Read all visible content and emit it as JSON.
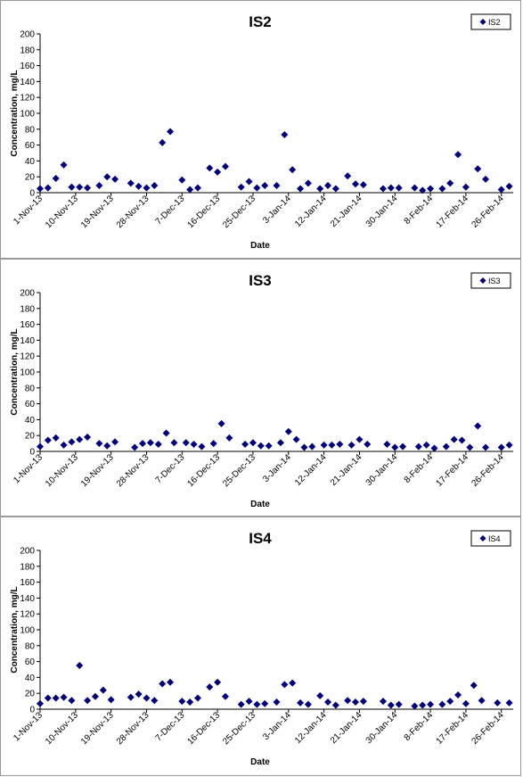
{
  "chart_data": [
    {
      "type": "scatter",
      "title": "IS2",
      "xlabel": "Date",
      "ylabel": "Concentration, mg/L",
      "ylim": [
        0,
        200
      ],
      "yticks": [
        0,
        20,
        40,
        60,
        80,
        100,
        120,
        140,
        160,
        180,
        200
      ],
      "xlim": [
        "2013-11-01",
        "2014-03-01"
      ],
      "xtick_labels": [
        "1-Nov-13",
        "10-Nov-13",
        "19-Nov-13",
        "28-Nov-13",
        "7-Dec-13",
        "16-Dec-13",
        "25-Dec-13",
        "3-Jan-14",
        "12-Jan-14",
        "21-Jan-14",
        "30-Jan-14",
        "8-Feb-14",
        "17-Feb-14",
        "26-Feb-14"
      ],
      "xtick_dates": [
        "2013-11-01",
        "2013-11-10",
        "2013-11-19",
        "2013-11-28",
        "2013-12-07",
        "2013-12-16",
        "2013-12-25",
        "2014-01-03",
        "2014-01-12",
        "2014-01-21",
        "2014-01-30",
        "2014-02-08",
        "2014-02-17",
        "2014-02-26"
      ],
      "legend_position": "top-right",
      "grid": false,
      "marker_color": "#00007f",
      "series": [
        {
          "name": "IS2",
          "points": [
            [
              "2013-11-01",
              5
            ],
            [
              "2013-11-03",
              6
            ],
            [
              "2013-11-05",
              18
            ],
            [
              "2013-11-07",
              35
            ],
            [
              "2013-11-09",
              7
            ],
            [
              "2013-11-11",
              7
            ],
            [
              "2013-11-13",
              6
            ],
            [
              "2013-11-16",
              9
            ],
            [
              "2013-11-18",
              20
            ],
            [
              "2013-11-20",
              17
            ],
            [
              "2013-11-24",
              12
            ],
            [
              "2013-11-26",
              8
            ],
            [
              "2013-11-28",
              6
            ],
            [
              "2013-11-30",
              9
            ],
            [
              "2013-12-02",
              63
            ],
            [
              "2013-12-04",
              77
            ],
            [
              "2013-12-07",
              16
            ],
            [
              "2013-12-09",
              4
            ],
            [
              "2013-12-11",
              6
            ],
            [
              "2013-12-14",
              31
            ],
            [
              "2013-12-16",
              26
            ],
            [
              "2013-12-18",
              33
            ],
            [
              "2013-12-22",
              7
            ],
            [
              "2013-12-24",
              14
            ],
            [
              "2013-12-26",
              6
            ],
            [
              "2013-12-28",
              9
            ],
            [
              "2013-12-31",
              9
            ],
            [
              "2014-01-02",
              73
            ],
            [
              "2014-01-04",
              29
            ],
            [
              "2014-01-06",
              5
            ],
            [
              "2014-01-08",
              12
            ],
            [
              "2014-01-11",
              5
            ],
            [
              "2014-01-13",
              9
            ],
            [
              "2014-01-15",
              5
            ],
            [
              "2014-01-18",
              21
            ],
            [
              "2014-01-20",
              11
            ],
            [
              "2014-01-22",
              10
            ],
            [
              "2014-01-27",
              5
            ],
            [
              "2014-01-29",
              6
            ],
            [
              "2014-01-31",
              6
            ],
            [
              "2014-02-04",
              6
            ],
            [
              "2014-02-06",
              3
            ],
            [
              "2014-02-08",
              5
            ],
            [
              "2014-02-11",
              5
            ],
            [
              "2014-02-13",
              12
            ],
            [
              "2014-02-15",
              48
            ],
            [
              "2014-02-17",
              7
            ],
            [
              "2014-02-20",
              30
            ],
            [
              "2014-02-22",
              17
            ],
            [
              "2014-02-26",
              4
            ],
            [
              "2014-02-28",
              8
            ]
          ]
        }
      ]
    },
    {
      "type": "scatter",
      "title": "IS3",
      "xlabel": "Date",
      "ylabel": "Concentration, mg/L",
      "ylim": [
        0,
        200
      ],
      "yticks": [
        0,
        20,
        40,
        60,
        80,
        100,
        120,
        140,
        160,
        180,
        200
      ],
      "xlim": [
        "2013-11-01",
        "2014-03-01"
      ],
      "xtick_labels": [
        "1-Nov-13",
        "10-Nov-13",
        "19-Nov-13",
        "28-Nov-13",
        "7-Dec-13",
        "16-Dec-13",
        "25-Dec-13",
        "3-Jan-14",
        "12-Jan-14",
        "21-Jan-14",
        "30-Jan-14",
        "8-Feb-14",
        "17-Feb-14",
        "26-Feb-14"
      ],
      "xtick_dates": [
        "2013-11-01",
        "2013-11-10",
        "2013-11-19",
        "2013-11-28",
        "2013-12-07",
        "2013-12-16",
        "2013-12-25",
        "2014-01-03",
        "2014-01-12",
        "2014-01-21",
        "2014-01-30",
        "2014-02-08",
        "2014-02-17",
        "2014-02-26"
      ],
      "legend_position": "top-right",
      "grid": false,
      "marker_color": "#00007f",
      "series": [
        {
          "name": "IS3",
          "points": [
            [
              "2013-11-01",
              6
            ],
            [
              "2013-11-03",
              14
            ],
            [
              "2013-11-05",
              17
            ],
            [
              "2013-11-07",
              8
            ],
            [
              "2013-11-09",
              12
            ],
            [
              "2013-11-11",
              15
            ],
            [
              "2013-11-13",
              18
            ],
            [
              "2013-11-16",
              10
            ],
            [
              "2013-11-18",
              7
            ],
            [
              "2013-11-20",
              12
            ],
            [
              "2013-11-25",
              5
            ],
            [
              "2013-11-27",
              10
            ],
            [
              "2013-11-29",
              11
            ],
            [
              "2013-12-01",
              9
            ],
            [
              "2013-12-03",
              23
            ],
            [
              "2013-12-05",
              11
            ],
            [
              "2013-12-08",
              11
            ],
            [
              "2013-12-10",
              9
            ],
            [
              "2013-12-12",
              6
            ],
            [
              "2013-12-15",
              10
            ],
            [
              "2013-12-17",
              35
            ],
            [
              "2013-12-19",
              17
            ],
            [
              "2013-12-23",
              9
            ],
            [
              "2013-12-25",
              11
            ],
            [
              "2013-12-27",
              7
            ],
            [
              "2013-12-29",
              7
            ],
            [
              "2014-01-01",
              11
            ],
            [
              "2014-01-03",
              25
            ],
            [
              "2014-01-05",
              15
            ],
            [
              "2014-01-07",
              5
            ],
            [
              "2014-01-09",
              6
            ],
            [
              "2014-01-12",
              8
            ],
            [
              "2014-01-14",
              8
            ],
            [
              "2014-01-16",
              9
            ],
            [
              "2014-01-19",
              8
            ],
            [
              "2014-01-21",
              15
            ],
            [
              "2014-01-23",
              9
            ],
            [
              "2014-01-28",
              9
            ],
            [
              "2014-01-30",
              5
            ],
            [
              "2014-02-01",
              6
            ],
            [
              "2014-02-05",
              6
            ],
            [
              "2014-02-07",
              8
            ],
            [
              "2014-02-09",
              4
            ],
            [
              "2014-02-12",
              6
            ],
            [
              "2014-02-14",
              15
            ],
            [
              "2014-02-16",
              14
            ],
            [
              "2014-02-18",
              5
            ],
            [
              "2014-02-20",
              32
            ],
            [
              "2014-02-22",
              5
            ],
            [
              "2014-02-26",
              5
            ],
            [
              "2014-02-28",
              8
            ]
          ]
        }
      ]
    },
    {
      "type": "scatter",
      "title": "IS4",
      "xlabel": "Date",
      "ylabel": "Concentration, mg/L",
      "ylim": [
        0,
        200
      ],
      "yticks": [
        0,
        20,
        40,
        60,
        80,
        100,
        120,
        140,
        160,
        180,
        200
      ],
      "xlim": [
        "2013-11-01",
        "2014-03-01"
      ],
      "xtick_labels": [
        "1-Nov-13",
        "10-Nov-13",
        "19-Nov-13",
        "28-Nov-13",
        "7-Dec-13",
        "16-Dec-13",
        "25-Dec-13",
        "3-Jan-14",
        "12-Jan-14",
        "21-Jan-14",
        "30-Jan-14",
        "8-Feb-14",
        "17-Feb-14",
        "26-Feb-14"
      ],
      "xtick_dates": [
        "2013-11-01",
        "2013-11-10",
        "2013-11-19",
        "2013-11-28",
        "2013-12-07",
        "2013-12-16",
        "2013-12-25",
        "2014-01-03",
        "2014-01-12",
        "2014-01-21",
        "2014-01-30",
        "2014-02-08",
        "2014-02-17",
        "2014-02-26"
      ],
      "legend_position": "top-right",
      "grid": false,
      "marker_color": "#00007f",
      "series": [
        {
          "name": "IS4",
          "points": [
            [
              "2013-11-01",
              7
            ],
            [
              "2013-11-03",
              14
            ],
            [
              "2013-11-05",
              14
            ],
            [
              "2013-11-07",
              15
            ],
            [
              "2013-11-09",
              11
            ],
            [
              "2013-11-11",
              55
            ],
            [
              "2013-11-13",
              11
            ],
            [
              "2013-11-15",
              16
            ],
            [
              "2013-11-17",
              24
            ],
            [
              "2013-11-19",
              12
            ],
            [
              "2013-11-24",
              15
            ],
            [
              "2013-11-26",
              19
            ],
            [
              "2013-11-28",
              14
            ],
            [
              "2013-11-30",
              11
            ],
            [
              "2013-12-02",
              32
            ],
            [
              "2013-12-04",
              34
            ],
            [
              "2013-12-07",
              10
            ],
            [
              "2013-12-09",
              9
            ],
            [
              "2013-12-11",
              14
            ],
            [
              "2013-12-14",
              28
            ],
            [
              "2013-12-16",
              34
            ],
            [
              "2013-12-18",
              16
            ],
            [
              "2013-12-22",
              6
            ],
            [
              "2013-12-24",
              10
            ],
            [
              "2013-12-26",
              6
            ],
            [
              "2013-12-28",
              7
            ],
            [
              "2013-12-31",
              9
            ],
            [
              "2014-01-02",
              31
            ],
            [
              "2014-01-04",
              33
            ],
            [
              "2014-01-06",
              8
            ],
            [
              "2014-01-08",
              6
            ],
            [
              "2014-01-11",
              17
            ],
            [
              "2014-01-13",
              9
            ],
            [
              "2014-01-15",
              5
            ],
            [
              "2014-01-18",
              11
            ],
            [
              "2014-01-20",
              9
            ],
            [
              "2014-01-22",
              10
            ],
            [
              "2014-01-27",
              10
            ],
            [
              "2014-01-29",
              5
            ],
            [
              "2014-01-31",
              6
            ],
            [
              "2014-02-04",
              4
            ],
            [
              "2014-02-06",
              5
            ],
            [
              "2014-02-08",
              6
            ],
            [
              "2014-02-11",
              6
            ],
            [
              "2014-02-13",
              10
            ],
            [
              "2014-02-15",
              18
            ],
            [
              "2014-02-17",
              7
            ],
            [
              "2014-02-19",
              30
            ],
            [
              "2014-02-21",
              11
            ],
            [
              "2014-02-25",
              8
            ],
            [
              "2014-02-28",
              8
            ]
          ]
        }
      ]
    }
  ]
}
